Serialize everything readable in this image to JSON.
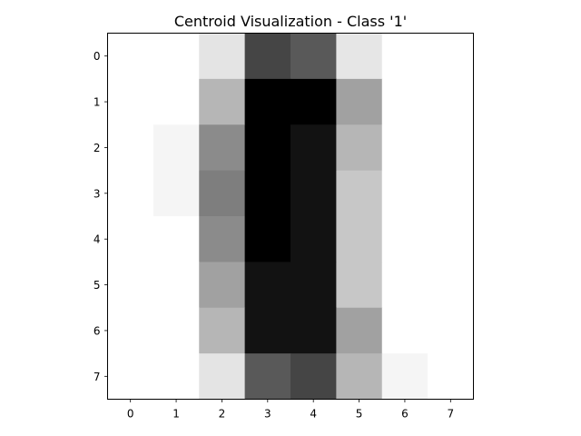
{
  "chart_data": {
    "type": "heatmap",
    "title": "Centroid Visualization - Class '1'",
    "xlabel": "",
    "ylabel": "",
    "colormap": "gray_r",
    "value_range": [
      0,
      16
    ],
    "x_ticks": [
      "0",
      "1",
      "2",
      "3",
      "4",
      "5",
      "6",
      "7"
    ],
    "y_ticks": [
      "0",
      "1",
      "2",
      "3",
      "4",
      "5",
      "6",
      "7"
    ],
    "grid": false,
    "matrix": [
      [
        0.0,
        0.0,
        1.7,
        11.7,
        10.4,
        1.6,
        0.0,
        0.0
      ],
      [
        0.0,
        0.0,
        4.6,
        16.0,
        16.0,
        5.9,
        0.0,
        0.0
      ],
      [
        0.0,
        0.6,
        7.3,
        16.0,
        14.9,
        4.6,
        0.0,
        0.0
      ],
      [
        0.0,
        0.6,
        8.1,
        16.0,
        14.9,
        3.5,
        0.0,
        0.0
      ],
      [
        0.0,
        0.0,
        7.3,
        16.0,
        14.9,
        3.5,
        0.0,
        0.0
      ],
      [
        0.0,
        0.0,
        5.9,
        14.9,
        14.9,
        3.5,
        0.0,
        0.0
      ],
      [
        0.0,
        0.0,
        4.6,
        14.9,
        14.9,
        5.9,
        0.0,
        0.0
      ],
      [
        0.0,
        0.0,
        1.7,
        10.4,
        11.7,
        4.6,
        0.6,
        0.0
      ]
    ]
  }
}
